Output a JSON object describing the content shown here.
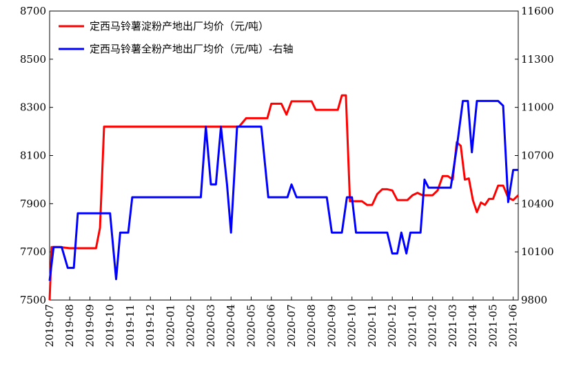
{
  "chart_data": {
    "type": "line",
    "legend": {
      "placement": "top-left",
      "entries": [
        "定西马铃薯淀粉产地出厂均价（元/吨）",
        "定西马铃薯全粉产地出厂均价（元/吨）-右轴"
      ]
    },
    "x_labels": [
      "2019-07",
      "2019-08",
      "2019-09",
      "2019-10",
      "2019-11",
      "2019-12",
      "2020-01",
      "2020-02",
      "2020-03",
      "2020-04",
      "2020-05",
      "2020-06",
      "2020-07",
      "2020-08",
      "2020-09",
      "2020-10",
      "2020-11",
      "2020-12",
      "2021-01",
      "2021-02",
      "2021-03",
      "2021-04",
      "2021-05",
      "2021-06"
    ],
    "x_range": [
      0,
      23.25
    ],
    "y_left": {
      "range": [
        7500,
        8700
      ],
      "ticks": [
        "8700",
        "8500",
        "8300",
        "8100",
        "7900",
        "7700",
        "7500"
      ]
    },
    "y_right": {
      "range": [
        9800,
        11600
      ],
      "ticks": [
        "11600",
        "11300",
        "11000",
        "10700",
        "10400",
        "10100",
        "9800"
      ]
    },
    "grid": false,
    "series": [
      {
        "name": "定西马铃薯淀粉产地出厂均价（元/吨）",
        "axis": "left",
        "color": "#ff0000",
        "points": [
          [
            0.0,
            7500
          ],
          [
            0.1,
            7720
          ],
          [
            0.5,
            7720
          ],
          [
            1.0,
            7715
          ],
          [
            2.0,
            7715
          ],
          [
            2.3,
            7715
          ],
          [
            2.5,
            7800
          ],
          [
            2.7,
            8220
          ],
          [
            3.0,
            8220
          ],
          [
            4.0,
            8220
          ],
          [
            5.0,
            8220
          ],
          [
            6.0,
            8220
          ],
          [
            7.0,
            8220
          ],
          [
            8.0,
            8220
          ],
          [
            9.0,
            8220
          ],
          [
            9.4,
            8220
          ],
          [
            9.75,
            8255
          ],
          [
            10.5,
            8255
          ],
          [
            10.8,
            8255
          ],
          [
            11.0,
            8315
          ],
          [
            11.5,
            8315
          ],
          [
            11.75,
            8270
          ],
          [
            12.0,
            8325
          ],
          [
            12.5,
            8325
          ],
          [
            13.0,
            8325
          ],
          [
            13.2,
            8290
          ],
          [
            14.0,
            8290
          ],
          [
            14.3,
            8290
          ],
          [
            14.5,
            8350
          ],
          [
            14.7,
            8350
          ],
          [
            14.9,
            7910
          ],
          [
            15.5,
            7910
          ],
          [
            15.75,
            7895
          ],
          [
            16.0,
            7895
          ],
          [
            16.25,
            7940
          ],
          [
            16.5,
            7960
          ],
          [
            16.75,
            7960
          ],
          [
            17.0,
            7955
          ],
          [
            17.25,
            7915
          ],
          [
            17.75,
            7915
          ],
          [
            18.0,
            7935
          ],
          [
            18.25,
            7945
          ],
          [
            18.5,
            7935
          ],
          [
            18.75,
            7935
          ],
          [
            19.0,
            7935
          ],
          [
            19.25,
            7955
          ],
          [
            19.5,
            8015
          ],
          [
            19.75,
            8015
          ],
          [
            20.0,
            8000
          ],
          [
            20.2,
            8155
          ],
          [
            20.4,
            8140
          ],
          [
            20.6,
            8000
          ],
          [
            20.8,
            8005
          ],
          [
            21.0,
            7915
          ],
          [
            21.2,
            7865
          ],
          [
            21.4,
            7905
          ],
          [
            21.6,
            7895
          ],
          [
            21.8,
            7920
          ],
          [
            22.0,
            7920
          ],
          [
            22.25,
            7975
          ],
          [
            22.5,
            7975
          ],
          [
            22.75,
            7925
          ],
          [
            23.0,
            7915
          ],
          [
            23.25,
            7935
          ]
        ]
      },
      {
        "name": "定西马铃薯全粉产地出厂均价（元/吨）-右轴",
        "axis": "right",
        "color": "#0000ff",
        "points": [
          [
            0.0,
            9920
          ],
          [
            0.2,
            10130
          ],
          [
            0.6,
            10130
          ],
          [
            0.9,
            10000
          ],
          [
            1.2,
            10000
          ],
          [
            1.4,
            10340
          ],
          [
            2.0,
            10340
          ],
          [
            2.6,
            10340
          ],
          [
            3.0,
            10340
          ],
          [
            3.3,
            9930
          ],
          [
            3.5,
            10220
          ],
          [
            3.9,
            10220
          ],
          [
            4.1,
            10440
          ],
          [
            5.0,
            10440
          ],
          [
            6.0,
            10440
          ],
          [
            7.0,
            10440
          ],
          [
            7.5,
            10440
          ],
          [
            7.75,
            10880
          ],
          [
            8.0,
            10520
          ],
          [
            8.25,
            10520
          ],
          [
            8.5,
            10880
          ],
          [
            8.8,
            10520
          ],
          [
            9.0,
            10220
          ],
          [
            9.3,
            10880
          ],
          [
            10.0,
            10880
          ],
          [
            10.5,
            10880
          ],
          [
            10.85,
            10440
          ],
          [
            11.5,
            10440
          ],
          [
            11.8,
            10440
          ],
          [
            12.0,
            10520
          ],
          [
            12.25,
            10440
          ],
          [
            13.0,
            10440
          ],
          [
            13.75,
            10440
          ],
          [
            14.0,
            10220
          ],
          [
            14.5,
            10220
          ],
          [
            14.75,
            10440
          ],
          [
            15.0,
            10440
          ],
          [
            15.2,
            10220
          ],
          [
            16.0,
            10220
          ],
          [
            16.75,
            10220
          ],
          [
            17.0,
            10090
          ],
          [
            17.25,
            10090
          ],
          [
            17.45,
            10220
          ],
          [
            17.7,
            10090
          ],
          [
            17.9,
            10220
          ],
          [
            18.4,
            10220
          ],
          [
            18.6,
            10550
          ],
          [
            18.8,
            10500
          ],
          [
            19.5,
            10500
          ],
          [
            19.9,
            10500
          ],
          [
            20.2,
            10750
          ],
          [
            20.5,
            11040
          ],
          [
            20.75,
            11040
          ],
          [
            20.95,
            10720
          ],
          [
            21.2,
            11040
          ],
          [
            22.0,
            11040
          ],
          [
            22.25,
            11040
          ],
          [
            22.5,
            11010
          ],
          [
            22.75,
            10410
          ],
          [
            23.0,
            10610
          ],
          [
            23.25,
            10610
          ]
        ]
      }
    ]
  }
}
